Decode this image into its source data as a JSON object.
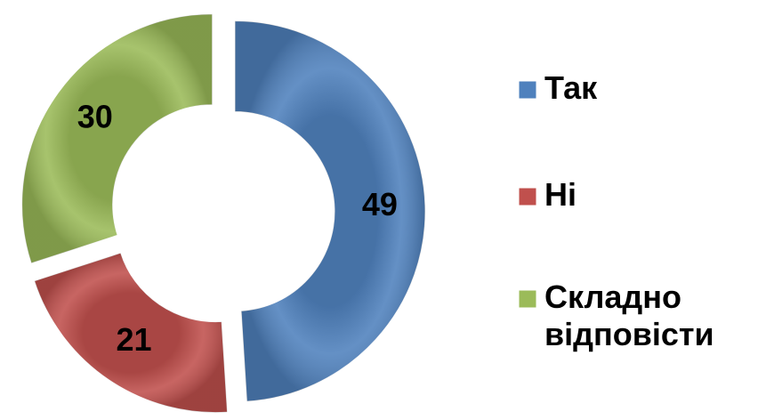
{
  "chart_data": {
    "type": "doughnut",
    "categories": [
      "Так",
      "Ні",
      "Складно відповісти"
    ],
    "values": [
      49,
      21,
      30
    ],
    "colors": [
      "#4f81bd",
      "#c0504d",
      "#9bbb59"
    ],
    "legend": "right"
  }
}
